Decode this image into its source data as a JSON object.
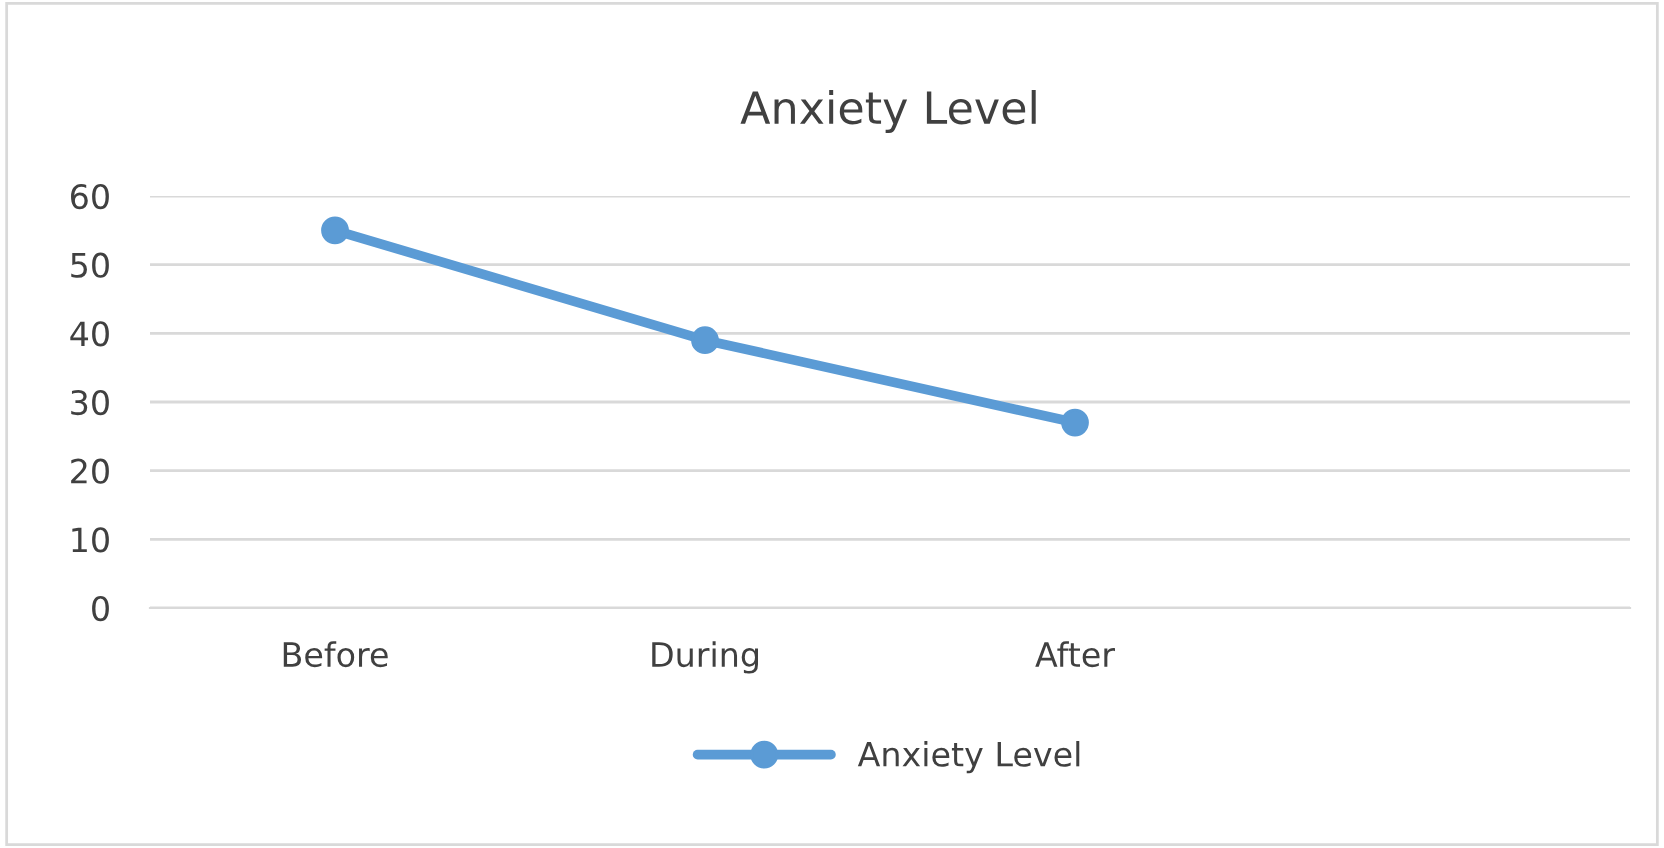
{
  "chart_data": {
    "type": "line",
    "title": "Anxiety Level",
    "categories": [
      "Before",
      "During",
      "After",
      null
    ],
    "series": [
      {
        "name": "Anxiety Level",
        "color": "#5b9bd5",
        "values": [
          55,
          39,
          27,
          null
        ]
      }
    ],
    "ylim": [
      0,
      60
    ],
    "yticks": [
      0,
      10,
      20,
      30,
      40,
      50,
      60
    ],
    "grid": "y",
    "legend": "bottom",
    "marker": "circle",
    "line_style": "solid"
  }
}
